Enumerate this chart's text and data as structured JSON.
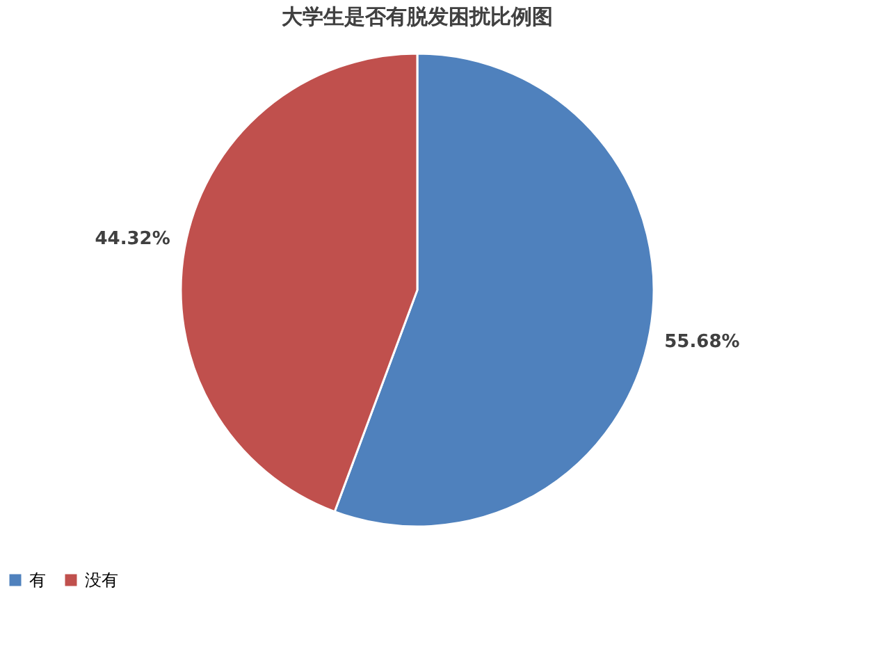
{
  "chart_data": {
    "type": "pie",
    "title": "大学生是否有脱发困扰比例图",
    "categories": [
      "有",
      "没有"
    ],
    "values": [
      55.68,
      44.32
    ],
    "colors": [
      "#4f81bd",
      "#c0504d"
    ],
    "value_labels": [
      "55.68%",
      "44.32%"
    ],
    "legend": "bottom"
  }
}
